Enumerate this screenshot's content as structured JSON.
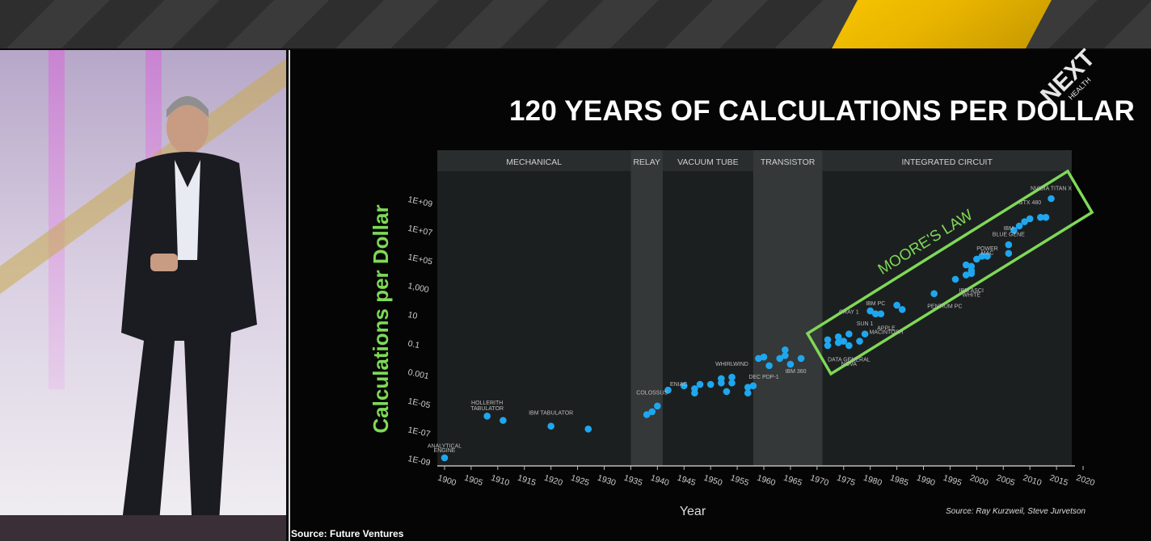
{
  "banner": {
    "colors": {
      "base": "#333333",
      "accent": "#f6c200"
    }
  },
  "logo": {
    "main": "NEXT",
    "sub": "HEALTH"
  },
  "slide": {
    "title": "120 YEARS OF CALCULATIONS PER DOLLAR",
    "credit": "Source: Ray Kurzweil, Steve Jurvetson",
    "footer_source": "Source: Future Ventures"
  },
  "chart_data": {
    "type": "scatter",
    "xlabel": "Year",
    "ylabel": "Calculations per Dollar",
    "xlim": [
      1898,
      2020
    ],
    "x_ticks": [
      1900,
      1905,
      1910,
      1915,
      1920,
      1925,
      1930,
      1935,
      1940,
      1945,
      1950,
      1955,
      1960,
      1965,
      1970,
      1975,
      1980,
      1985,
      1990,
      1995,
      2000,
      2005,
      2010,
      2015,
      2020
    ],
    "y_scale": "log",
    "y_ticks": [
      {
        "label": "1E-09",
        "log": -9
      },
      {
        "label": "1E-07",
        "log": -7
      },
      {
        "label": "1E-05",
        "log": -5
      },
      {
        "label": "0.001",
        "log": -3
      },
      {
        "label": "0.1",
        "log": -1
      },
      {
        "label": "10",
        "log": 1
      },
      {
        "label": "1,000",
        "log": 3
      },
      {
        "label": "1E+05",
        "log": 5
      },
      {
        "label": "1E+07",
        "log": 7
      },
      {
        "label": "1E+09",
        "log": 9
      }
    ],
    "eras": [
      {
        "label": "MECHANICAL",
        "start": 1898,
        "end": 1935,
        "shaded": false
      },
      {
        "label": "RELAY",
        "start": 1935,
        "end": 1941,
        "shaded": true
      },
      {
        "label": "VACUUM TUBE",
        "start": 1941,
        "end": 1958,
        "shaded": false
      },
      {
        "label": "TRANSISTOR",
        "start": 1958,
        "end": 1971,
        "shaded": true
      },
      {
        "label": "INTEGRATED CIRCUIT",
        "start": 1971,
        "end": 2020,
        "shaded": false
      }
    ],
    "annotation": "MOORE'S LAW",
    "colors": {
      "point": "#1ea7ef",
      "moore": "#7ed957",
      "ylabel": "#7ed957"
    },
    "points": [
      [
        1900,
        -9.0
      ],
      [
        1908,
        -6.1
      ],
      [
        1911,
        -6.4
      ],
      [
        1920,
        -6.8
      ],
      [
        1927,
        -7.0
      ],
      [
        1938,
        -6.0
      ],
      [
        1939,
        -5.8
      ],
      [
        1940,
        -5.4
      ],
      [
        1942,
        -4.3
      ],
      [
        1945,
        -4.0
      ],
      [
        1947,
        -4.2
      ],
      [
        1947,
        -4.5
      ],
      [
        1948,
        -3.9
      ],
      [
        1950,
        -3.9
      ],
      [
        1952,
        -3.5
      ],
      [
        1952,
        -3.8
      ],
      [
        1953,
        -4.4
      ],
      [
        1954,
        -3.8
      ],
      [
        1954,
        -3.4
      ],
      [
        1957,
        -4.1
      ],
      [
        1957,
        -4.5
      ],
      [
        1958,
        -4.0
      ],
      [
        1959,
        -2.1
      ],
      [
        1960,
        -2.0
      ],
      [
        1961,
        -2.6
      ],
      [
        1963,
        -2.1
      ],
      [
        1964,
        -1.5
      ],
      [
        1964,
        -1.9
      ],
      [
        1965,
        -2.5
      ],
      [
        1967,
        -2.1
      ],
      [
        1972,
        -1.2
      ],
      [
        1972,
        -0.8
      ],
      [
        1974,
        -1.0
      ],
      [
        1974,
        -0.6
      ],
      [
        1975,
        -0.9
      ],
      [
        1976,
        -0.4
      ],
      [
        1976,
        -1.2
      ],
      [
        1978,
        -0.9
      ],
      [
        1979,
        -0.4
      ],
      [
        1980,
        1.2
      ],
      [
        1981,
        1.0
      ],
      [
        1982,
        1.0
      ],
      [
        1985,
        1.6
      ],
      [
        1986,
        1.3
      ],
      [
        1992,
        2.4
      ],
      [
        1996,
        3.4
      ],
      [
        1998,
        3.7
      ],
      [
        1998,
        4.4
      ],
      [
        1999,
        4.0
      ],
      [
        1999,
        3.8
      ],
      [
        1999,
        4.3
      ],
      [
        2000,
        4.8
      ],
      [
        2001,
        5.0
      ],
      [
        2002,
        5.0
      ],
      [
        2006,
        5.8
      ],
      [
        2006,
        5.2
      ],
      [
        2007,
        6.8
      ],
      [
        2008,
        7.1
      ],
      [
        2009,
        7.4
      ],
      [
        2010,
        7.6
      ],
      [
        2012,
        7.7
      ],
      [
        2013,
        7.7
      ],
      [
        2014,
        9.0
      ]
    ],
    "point_labels": [
      {
        "text": "ANALYTICAL",
        "x": 1900,
        "y": -8.3
      },
      {
        "text": "ENGINE",
        "x": 1900,
        "y": -8.6
      },
      {
        "text": "HOLLERITH",
        "x": 1908,
        "y": -5.3
      },
      {
        "text": "TABULATOR",
        "x": 1908,
        "y": -5.7
      },
      {
        "text": "IBM TABULATOR",
        "x": 1920,
        "y": -6.0
      },
      {
        "text": "COLOSSUS",
        "x": 1939,
        "y": -4.6
      },
      {
        "text": "ENIAC",
        "x": 1944,
        "y": -4.0
      },
      {
        "text": "WHIRLWIND",
        "x": 1954,
        "y": -2.6
      },
      {
        "text": "DEC PDP-1",
        "x": 1960,
        "y": -3.5
      },
      {
        "text": "IBM 360",
        "x": 1966,
        "y": -3.1
      },
      {
        "text": "DATA GENERAL",
        "x": 1976,
        "y": -2.3
      },
      {
        "text": "NOVA",
        "x": 1976,
        "y": -2.6
      },
      {
        "text": "CRAY 1",
        "x": 1976,
        "y": 1.0
      },
      {
        "text": "SUN 1",
        "x": 1979,
        "y": 0.2
      },
      {
        "text": "IBM PC",
        "x": 1981,
        "y": 1.6
      },
      {
        "text": "APPLE",
        "x": 1983,
        "y": -0.1
      },
      {
        "text": "MACINTOSH",
        "x": 1983,
        "y": -0.4
      },
      {
        "text": "PENTIUM PC",
        "x": 1994,
        "y": 1.4
      },
      {
        "text": "IBM ASCI",
        "x": 1999,
        "y": 2.5
      },
      {
        "text": "WHITE",
        "x": 1999,
        "y": 2.2
      },
      {
        "text": "POWER",
        "x": 2002,
        "y": 5.4
      },
      {
        "text": "MAC",
        "x": 2002,
        "y": 5.1
      },
      {
        "text": "IBM",
        "x": 2006,
        "y": 6.8
      },
      {
        "text": "BLUE GENE",
        "x": 2006,
        "y": 6.4
      },
      {
        "text": "GTX 480",
        "x": 2010,
        "y": 8.6
      },
      {
        "text": "NVIDIA TITAN X",
        "x": 2014,
        "y": 9.6
      }
    ]
  }
}
